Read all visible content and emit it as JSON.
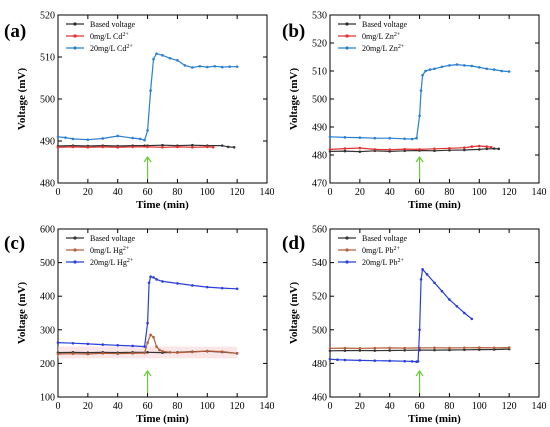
{
  "chart_data": [
    {
      "type": "line",
      "panel_label": "(a)",
      "xlabel": "Time (min)",
      "ylabel": "Voltage (mV)",
      "xlim": [
        0,
        140
      ],
      "ylim": [
        480,
        520
      ],
      "xticks": [
        0,
        20,
        40,
        60,
        80,
        100,
        120,
        140
      ],
      "yticks": [
        480,
        490,
        500,
        510,
        520
      ],
      "legend_position": "top-left",
      "arrow": {
        "x": 60,
        "color": "#66cc33"
      },
      "series": [
        {
          "name": "Based voltage",
          "legend_sup": "",
          "color": "#333333",
          "x": [
            0,
            10,
            20,
            30,
            40,
            50,
            58,
            60,
            70,
            80,
            90,
            100,
            110,
            114,
            118
          ],
          "y": [
            488.8,
            488.9,
            488.8,
            488.9,
            488.8,
            488.9,
            488.9,
            488.9,
            489.0,
            488.9,
            489.0,
            488.9,
            488.9,
            488.6,
            488.5
          ]
        },
        {
          "name": "0mg/L Cd",
          "legend_sup": "2+",
          "color": "#e03030",
          "x": [
            0,
            10,
            20,
            30,
            40,
            50,
            60,
            70,
            80,
            90,
            100,
            104
          ],
          "y": [
            488.5,
            488.6,
            488.5,
            488.6,
            488.5,
            488.6,
            488.6,
            488.5,
            488.6,
            488.5,
            488.6,
            488.5
          ]
        },
        {
          "name": "20mg/L Cd",
          "legend_sup": "2+",
          "color": "#2a7fd0",
          "x": [
            0,
            5,
            10,
            20,
            30,
            40,
            50,
            55,
            58,
            60,
            62,
            64,
            66,
            70,
            75,
            80,
            85,
            90,
            95,
            100,
            105,
            110,
            115,
            120
          ],
          "y": [
            491,
            490.8,
            490.5,
            490.3,
            490.6,
            491.2,
            490.7,
            490.5,
            490.2,
            492.5,
            502.0,
            509.5,
            510.8,
            510.4,
            509.7,
            509.2,
            508.0,
            507.5,
            507.8,
            507.6,
            507.8,
            507.6,
            507.7,
            507.7
          ]
        }
      ]
    },
    {
      "type": "line",
      "panel_label": "(b)",
      "xlabel": "Time (min)",
      "ylabel": "Voltage (mV)",
      "xlim": [
        0,
        140
      ],
      "ylim": [
        470,
        530
      ],
      "xticks": [
        0,
        20,
        40,
        60,
        80,
        100,
        120,
        140
      ],
      "yticks": [
        470,
        480,
        490,
        500,
        510,
        520,
        530
      ],
      "legend_position": "top-left",
      "arrow": {
        "x": 60,
        "color": "#66cc33"
      },
      "series": [
        {
          "name": "Based voltage",
          "legend_sup": "",
          "color": "#333333",
          "x": [
            0,
            10,
            20,
            30,
            40,
            50,
            60,
            70,
            80,
            90,
            100,
            105,
            110,
            113
          ],
          "y": [
            481.3,
            481.4,
            481.2,
            481.5,
            481.3,
            481.5,
            481.6,
            481.5,
            481.7,
            481.8,
            482.0,
            482.2,
            482.3,
            482.2
          ]
        },
        {
          "name": "0mg/L Zn",
          "legend_sup": "2+",
          "color": "#e03030",
          "x": [
            0,
            10,
            20,
            30,
            40,
            50,
            60,
            70,
            80,
            90,
            95,
            100,
            105,
            108
          ],
          "y": [
            482.0,
            482.3,
            482.5,
            482.0,
            481.9,
            482.1,
            482.0,
            482.2,
            482.4,
            482.6,
            483.0,
            483.2,
            483.0,
            482.8
          ]
        },
        {
          "name": "20mg/L Zn",
          "legend_sup": "2+",
          "color": "#2a7fd0",
          "x": [
            0,
            10,
            20,
            30,
            40,
            50,
            55,
            58,
            60,
            61,
            62,
            64,
            67,
            70,
            75,
            80,
            85,
            90,
            95,
            100,
            105,
            110,
            115,
            120
          ],
          "y": [
            486.5,
            486.3,
            486.2,
            486.0,
            486.0,
            485.8,
            485.7,
            486.0,
            494.0,
            503.0,
            508.5,
            510.0,
            510.5,
            510.8,
            511.5,
            512.0,
            512.3,
            512.0,
            511.8,
            511.3,
            510.8,
            510.5,
            510.0,
            509.8
          ]
        }
      ]
    },
    {
      "type": "line",
      "panel_label": "(c)",
      "xlabel": "Time (min)",
      "ylabel": "Voltage (mV)",
      "xlim": [
        0,
        140
      ],
      "ylim": [
        100,
        600
      ],
      "xticks": [
        0,
        20,
        40,
        60,
        80,
        100,
        120,
        140
      ],
      "yticks": [
        100,
        200,
        300,
        400,
        500,
        600
      ],
      "legend_position": "top-left",
      "arrow": {
        "x": 60,
        "color": "#66cc33"
      },
      "series": [
        {
          "name": "Based voltage",
          "legend_sup": "",
          "color": "#333333",
          "x": [
            0,
            10,
            20,
            30,
            40,
            50,
            60,
            70,
            80,
            90,
            100,
            110,
            120
          ],
          "y": [
            232,
            233,
            232,
            233,
            232,
            233,
            233,
            232,
            233,
            235,
            236,
            234,
            230
          ]
        },
        {
          "name": "0mg/L Hg",
          "legend_sup": "2+",
          "color": "#b0603a",
          "x": [
            0,
            10,
            20,
            30,
            40,
            50,
            58,
            60,
            62,
            64,
            66,
            68,
            70,
            75,
            80,
            90,
            100,
            110,
            120
          ],
          "y": [
            228,
            229,
            228,
            230,
            229,
            230,
            231,
            262,
            285,
            278,
            250,
            240,
            236,
            233,
            232,
            234,
            237,
            235,
            230
          ]
        },
        {
          "name": "20mg/L Hg",
          "legend_sup": "2+",
          "color": "#2a3fd8",
          "x": [
            0,
            10,
            20,
            30,
            40,
            50,
            58,
            60,
            61,
            62,
            64,
            66,
            70,
            80,
            90,
            100,
            110,
            120
          ],
          "y": [
            262,
            260,
            258,
            256,
            254,
            252,
            250,
            320,
            440,
            458,
            456,
            450,
            444,
            438,
            432,
            427,
            424,
            422
          ]
        }
      ]
    },
    {
      "type": "line",
      "panel_label": "(d)",
      "xlabel": "Time (min)",
      "ylabel": "Voltage (mV)",
      "xlim": [
        0,
        140
      ],
      "ylim": [
        460,
        560
      ],
      "xticks": [
        0,
        20,
        40,
        60,
        80,
        100,
        120,
        140
      ],
      "yticks": [
        460,
        480,
        500,
        520,
        540,
        560
      ],
      "legend_position": "top-left",
      "arrow": {
        "x": 60,
        "color": "#66cc33"
      },
      "series": [
        {
          "name": "Based voltage",
          "legend_sup": "",
          "color": "#333333",
          "x": [
            0,
            10,
            20,
            30,
            40,
            50,
            60,
            70,
            80,
            90,
            100,
            110,
            120
          ],
          "y": [
            487.5,
            487.6,
            487.7,
            487.6,
            487.7,
            487.8,
            487.9,
            487.9,
            488.0,
            488.1,
            488.2,
            488.3,
            488.5
          ]
        },
        {
          "name": "0mg/L Pb",
          "legend_sup": "2+",
          "color": "#b0603a",
          "x": [
            0,
            10,
            20,
            30,
            40,
            50,
            60,
            70,
            80,
            90,
            100,
            110,
            120
          ],
          "y": [
            489.0,
            489.1,
            489.0,
            489.1,
            489.2,
            489.1,
            489.2,
            489.3,
            489.2,
            489.3,
            489.4,
            489.3,
            489.4
          ]
        },
        {
          "name": "20mg/L Pb",
          "legend_sup": "2+",
          "color": "#2a3fd8",
          "x": [
            0,
            5,
            10,
            20,
            30,
            40,
            50,
            55,
            58,
            59,
            60,
            61,
            62,
            65,
            70,
            75,
            80,
            85,
            90,
            95
          ],
          "y": [
            482.5,
            482.2,
            482.0,
            481.8,
            481.6,
            481.5,
            481.3,
            481.2,
            481.0,
            481.2,
            500.0,
            530.0,
            536.0,
            533.0,
            528.0,
            523.0,
            518.0,
            514.0,
            510.0,
            506.5
          ]
        }
      ]
    }
  ]
}
